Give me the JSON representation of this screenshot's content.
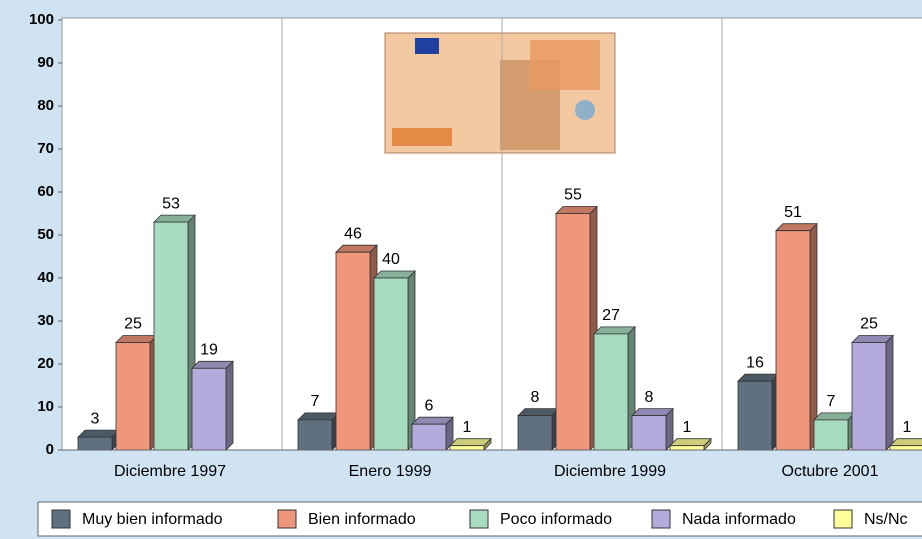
{
  "chart_data": {
    "type": "bar3d",
    "categories": [
      "Diciembre 1997",
      "Enero 1999",
      "Diciembre 1999",
      "Octubre 2001"
    ],
    "series": [
      {
        "name": "Muy bien informado",
        "color": "#5f7080",
        "values": [
          3,
          7,
          8,
          16
        ]
      },
      {
        "name": "Bien informado",
        "color": "#f0967a",
        "values": [
          25,
          46,
          55,
          51
        ]
      },
      {
        "name": "Poco informado",
        "color": "#a8dcc0",
        "values": [
          53,
          40,
          27,
          7
        ]
      },
      {
        "name": "Nada informado",
        "color": "#b4aadc",
        "values": [
          19,
          6,
          8,
          25
        ]
      },
      {
        "name": "Ns/Nc",
        "color": "#ffff99",
        "values": [
          null,
          1,
          1,
          1
        ]
      }
    ],
    "ylim": [
      0,
      100
    ],
    "yticks": [
      0,
      10,
      20,
      30,
      40,
      50,
      60,
      70,
      80,
      90,
      100
    ]
  }
}
